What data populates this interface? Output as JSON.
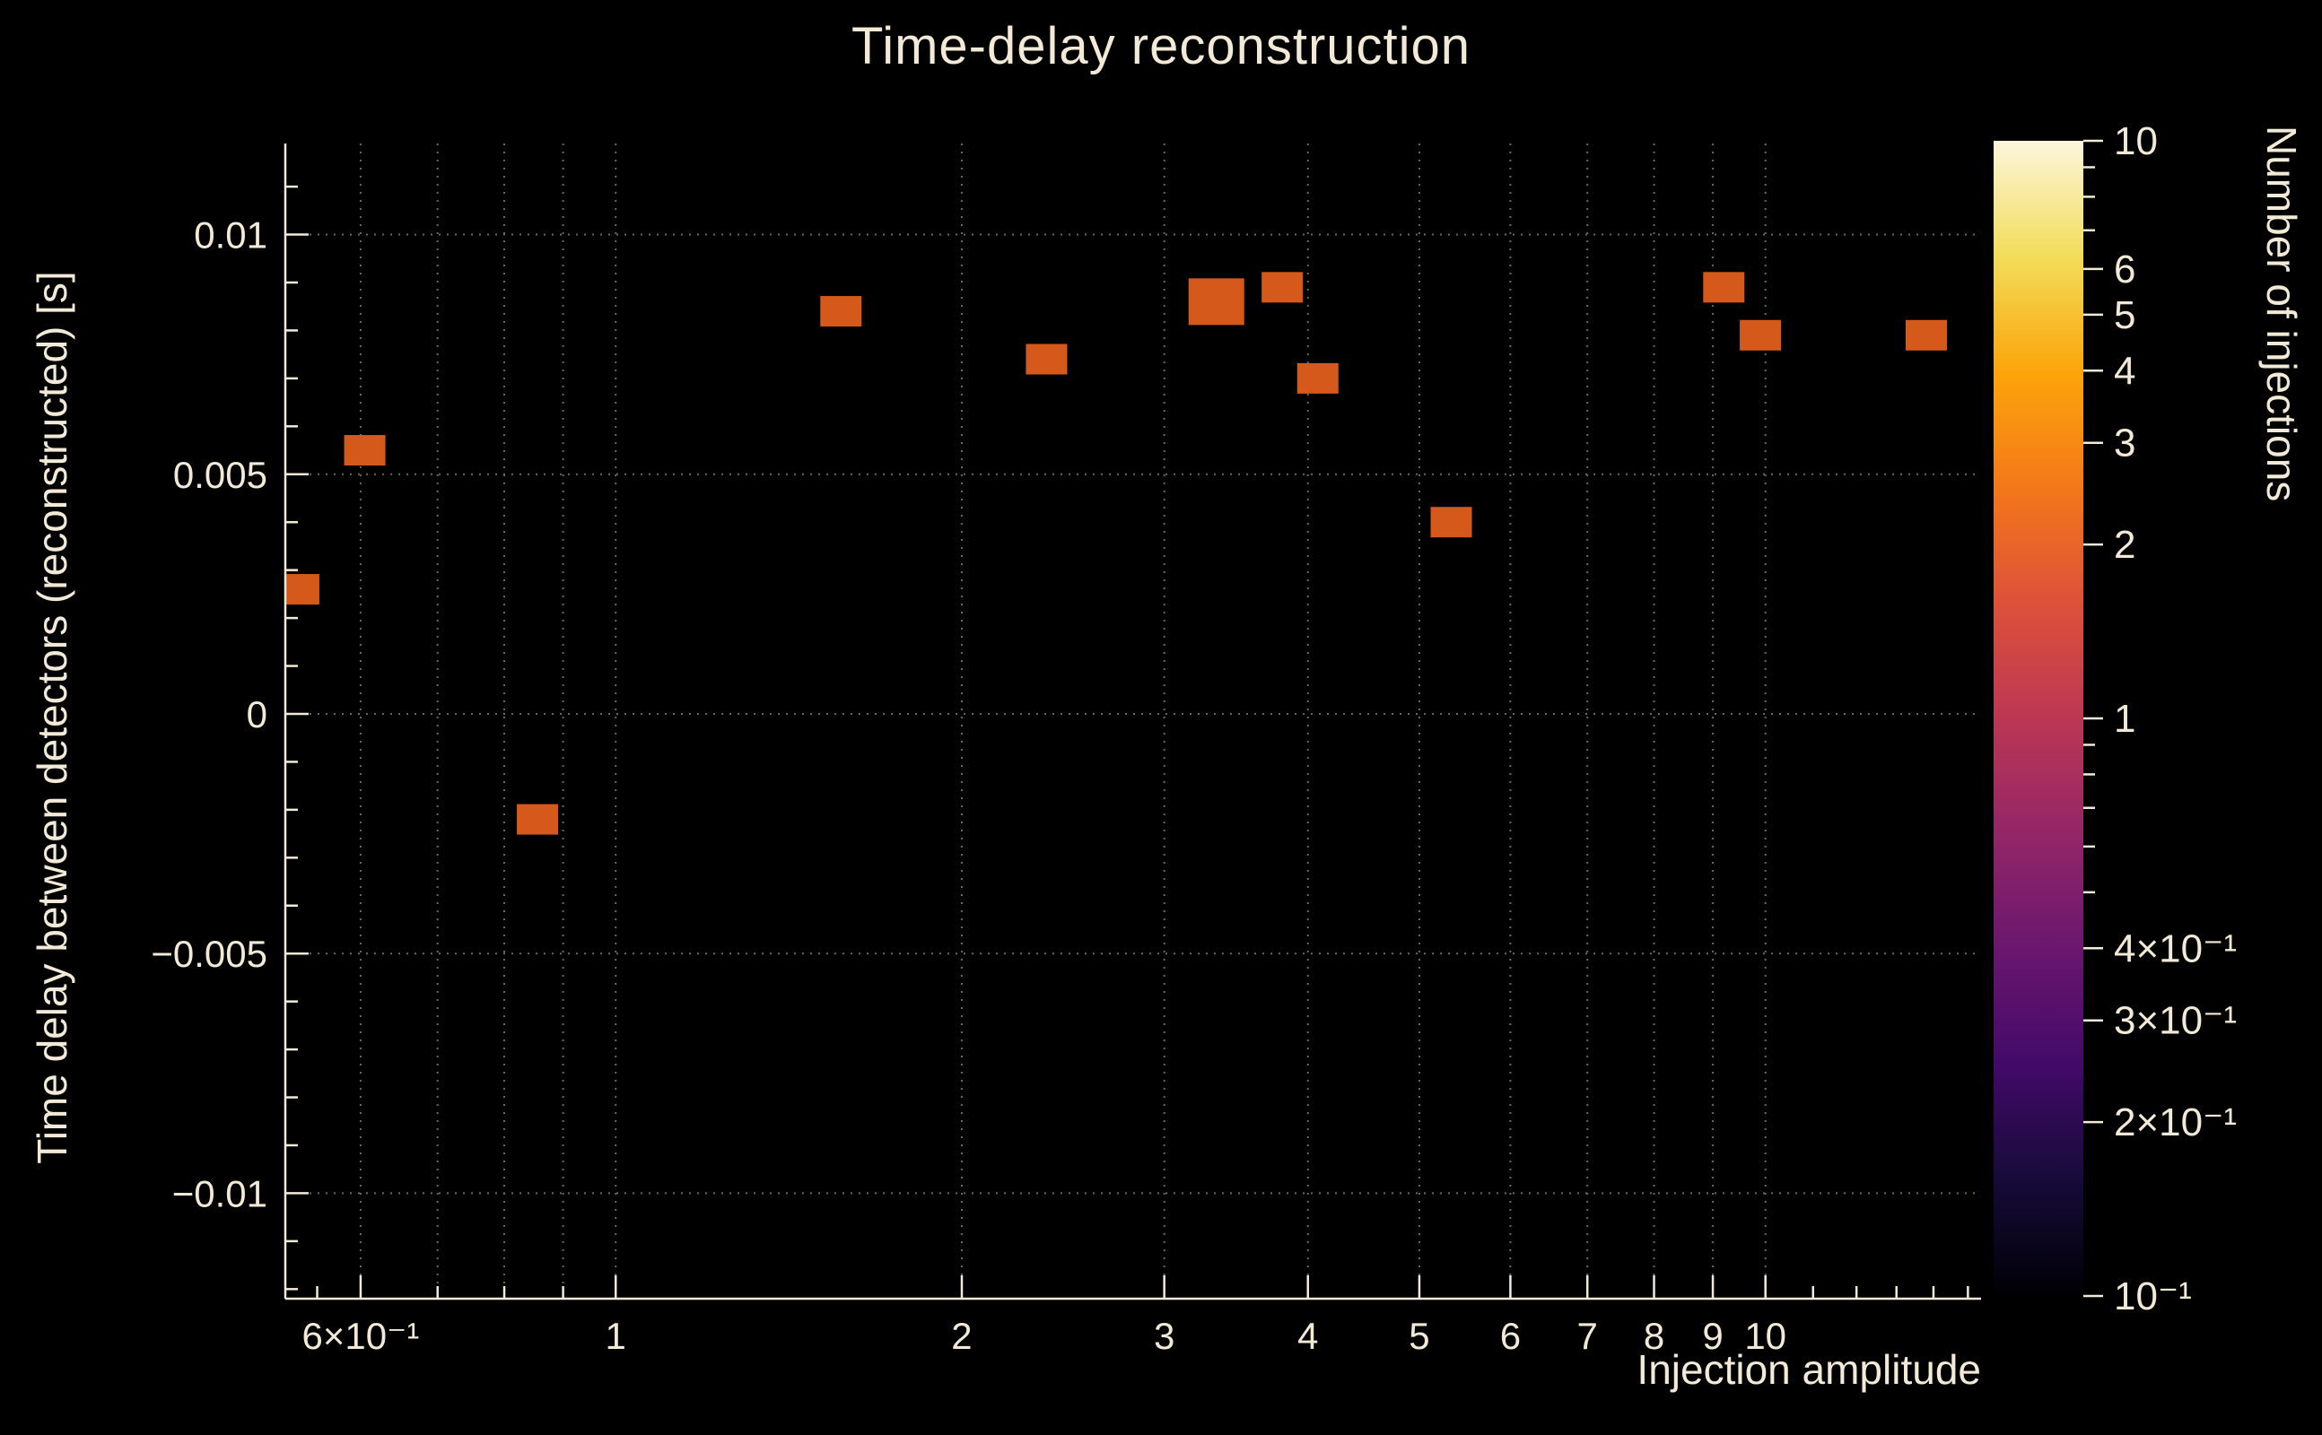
{
  "title": "Time-delay reconstruction",
  "axes": {
    "x_label": "Injection amplitude",
    "y_label": "Time delay between detectors (reconstructed) [s]"
  },
  "colorbar": {
    "label": "Number of injections"
  },
  "colors": {
    "background": "#000000",
    "text": "#f2e9d6",
    "axis": "#f2e9d6",
    "grid": "#d8d0bc",
    "marker": "#d4591b"
  },
  "chart_data": {
    "type": "heatmap",
    "title": "Time-delay reconstruction",
    "xlabel": "Injection amplitude",
    "ylabel": "Time delay between detectors (reconstructed) [s]",
    "x_scale": "log",
    "y_scale": "linear",
    "xlim": [
      0.516,
      15.4
    ],
    "ylim": [
      -0.0122,
      0.0119
    ],
    "grid": true,
    "x_ticks": [
      {
        "value": 0.6,
        "label": "6×10⁻¹"
      },
      {
        "value": 1,
        "label": "1"
      },
      {
        "value": 2,
        "label": "2"
      },
      {
        "value": 3,
        "label": "3"
      },
      {
        "value": 4,
        "label": "4"
      },
      {
        "value": 5,
        "label": "5"
      },
      {
        "value": 6,
        "label": "6"
      },
      {
        "value": 7,
        "label": "7"
      },
      {
        "value": 8,
        "label": "8"
      },
      {
        "value": 9,
        "label": "9"
      },
      {
        "value": 10,
        "label": "10"
      }
    ],
    "x_minor_ticks": [
      0.55,
      0.7,
      0.8,
      0.9,
      11,
      12,
      13,
      14,
      15
    ],
    "x_gridlines": [
      0.6,
      0.7,
      0.8,
      0.9,
      1,
      2,
      3,
      4,
      5,
      6,
      7,
      8,
      9,
      10
    ],
    "y_ticks": [
      {
        "value": 0.01,
        "label": "0.01"
      },
      {
        "value": 0.005,
        "label": "0.005"
      },
      {
        "value": 0,
        "label": "0"
      },
      {
        "value": -0.005,
        "label": "−0.005"
      },
      {
        "value": -0.01,
        "label": "−0.01"
      }
    ],
    "y_minor_step": 0.001,
    "bins": [
      {
        "x": 0.53,
        "y": 0.0026,
        "count": 1,
        "w": 46,
        "h": 34
      },
      {
        "x": 0.605,
        "y": 0.0055,
        "count": 1,
        "w": 46,
        "h": 34
      },
      {
        "x": 0.855,
        "y": -0.0022,
        "count": 1,
        "w": 46,
        "h": 34
      },
      {
        "x": 1.57,
        "y": 0.0084,
        "count": 1,
        "w": 46,
        "h": 34
      },
      {
        "x": 2.37,
        "y": 0.0074,
        "count": 1,
        "w": 46,
        "h": 34
      },
      {
        "x": 3.33,
        "y": 0.0086,
        "count": 1,
        "w": 62,
        "h": 52
      },
      {
        "x": 3.8,
        "y": 0.0089,
        "count": 1,
        "w": 46,
        "h": 34
      },
      {
        "x": 4.08,
        "y": 0.007,
        "count": 1,
        "w": 46,
        "h": 34
      },
      {
        "x": 5.33,
        "y": 0.004,
        "count": 1,
        "w": 46,
        "h": 34
      },
      {
        "x": 9.2,
        "y": 0.0089,
        "count": 1,
        "w": 46,
        "h": 34
      },
      {
        "x": 9.9,
        "y": 0.0079,
        "count": 1,
        "w": 46,
        "h": 34
      },
      {
        "x": 13.8,
        "y": 0.0079,
        "count": 1,
        "w": 46,
        "h": 34
      }
    ],
    "colorbar": {
      "label": "Number of injections",
      "scale": "log",
      "range": [
        0.1,
        10
      ],
      "ticks": [
        {
          "value": 10,
          "label": "10"
        },
        {
          "value": 6,
          "label": "6"
        },
        {
          "value": 5,
          "label": "5"
        },
        {
          "value": 4,
          "label": "4"
        },
        {
          "value": 3,
          "label": "3"
        },
        {
          "value": 2,
          "label": "2"
        },
        {
          "value": 1,
          "label": "1"
        },
        {
          "value": 0.4,
          "label": "4×10⁻¹"
        },
        {
          "value": 0.3,
          "label": "3×10⁻¹"
        },
        {
          "value": 0.2,
          "label": "2×10⁻¹"
        },
        {
          "value": 0.1,
          "label": "10⁻¹"
        }
      ],
      "minor_ticks": [
        9,
        8,
        7,
        0.9,
        0.8,
        0.7,
        0.6,
        0.5
      ],
      "colormap": [
        {
          "pos": 0.0,
          "color": "#000004"
        },
        {
          "pos": 0.1,
          "color": "#160b39"
        },
        {
          "pos": 0.2,
          "color": "#420a68"
        },
        {
          "pos": 0.3,
          "color": "#6a176e"
        },
        {
          "pos": 0.4,
          "color": "#932667"
        },
        {
          "pos": 0.5,
          "color": "#bc3754"
        },
        {
          "pos": 0.6,
          "color": "#dd513a"
        },
        {
          "pos": 0.7,
          "color": "#f37819"
        },
        {
          "pos": 0.8,
          "color": "#fca50a"
        },
        {
          "pos": 0.9,
          "color": "#f2dd5a"
        },
        {
          "pos": 1.0,
          "color": "#fbf6dc"
        }
      ]
    }
  }
}
